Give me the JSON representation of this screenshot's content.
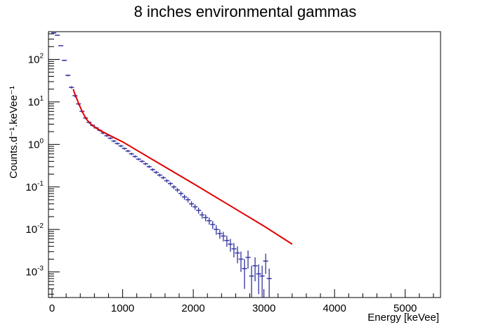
{
  "chart_data": {
    "type": "scatter",
    "title": "8 inches environmental gammas",
    "xlabel": "Energy [keVee]",
    "ylabel": "Counts.d⁻¹.keVee⁻¹",
    "xlim": [
      -50,
      5500
    ],
    "ylim": [
      0.00025,
      450
    ],
    "yscale": "log",
    "grid": false,
    "legend": "none",
    "xticks": [
      0,
      1000,
      2000,
      3000,
      4000,
      5000
    ],
    "xtick_labels": [
      "0",
      "1000",
      "2000",
      "3000",
      "4000",
      "5000"
    ],
    "yticks": [
      0.001,
      0.01,
      0.1,
      1,
      10,
      100
    ],
    "ytick_bases": [
      "10",
      "10",
      "10",
      "10",
      "10",
      "10"
    ],
    "ytick_exponents": [
      "-3",
      "-2",
      "-1",
      "0",
      "1",
      "2"
    ],
    "colors": {
      "data": "#3f3fa8",
      "fit": "#e00000"
    },
    "series": [
      {
        "kind": "histogram-points",
        "x": [
          25,
          75,
          125,
          175,
          225,
          275,
          325,
          375,
          425,
          475,
          525,
          575,
          625,
          675,
          725,
          775,
          825,
          875,
          925,
          975,
          1025,
          1075,
          1125,
          1175,
          1225,
          1275,
          1325,
          1375,
          1425,
          1475,
          1525,
          1575,
          1625,
          1675,
          1725,
          1775,
          1825,
          1875,
          1925,
          1975,
          2025,
          2075,
          2125,
          2175,
          2225,
          2275,
          2325,
          2375,
          2425,
          2475,
          2525,
          2575,
          2625,
          2675,
          2725,
          2775,
          2825,
          2875,
          2925,
          2975,
          3025,
          3075
        ],
        "y": [
          420,
          370,
          210,
          95,
          42,
          22,
          14,
          9,
          6,
          4.2,
          3.3,
          2.8,
          2.45,
          2.15,
          1.85,
          1.6,
          1.4,
          1.2,
          1.05,
          0.92,
          0.8,
          0.7,
          0.6,
          0.52,
          0.45,
          0.4,
          0.35,
          0.3,
          0.255,
          0.22,
          0.19,
          0.165,
          0.14,
          0.12,
          0.1,
          0.085,
          0.07,
          0.058,
          0.05,
          0.04,
          0.034,
          0.028,
          0.022,
          0.019,
          0.016,
          0.013,
          0.01,
          0.008,
          0.007,
          0.0055,
          0.0045,
          0.0035,
          0.0028,
          0.002,
          0.0012,
          0.0022,
          0.0008,
          0.0014,
          0.0009,
          0.0008,
          0.0018,
          0.0007
        ],
        "yerr": [
          6,
          5,
          4,
          3,
          2,
          1.5,
          1.2,
          0.6,
          0.4,
          0.3,
          0.2,
          0.18,
          0.15,
          0.13,
          0.11,
          0.1,
          0.09,
          0.08,
          0.07,
          0.06,
          0.05,
          0.045,
          0.04,
          0.035,
          0.03,
          0.028,
          0.025,
          0.022,
          0.02,
          0.018,
          0.016,
          0.014,
          0.013,
          0.012,
          0.011,
          0.01,
          0.009,
          0.008,
          0.007,
          0.006,
          0.005,
          0.0045,
          0.004,
          0.0035,
          0.003,
          0.0028,
          0.0025,
          0.002,
          0.0018,
          0.0016,
          0.0015,
          0.0013,
          0.0012,
          0.001,
          0.0008,
          0.001,
          0.0006,
          0.0008,
          0.0006,
          0.0006,
          0.0009,
          0.0005
        ]
      },
      {
        "kind": "fit-line",
        "x": [
          300,
          320,
          350,
          380,
          420,
          460,
          500,
          550,
          600,
          700,
          800,
          1000,
          1500,
          2000,
          2500,
          3000,
          3400
        ],
        "y": [
          20,
          16,
          12,
          9,
          6.3,
          4.7,
          3.7,
          3.0,
          2.6,
          2.05,
          1.68,
          1.15,
          0.37,
          0.12,
          0.038,
          0.012,
          0.0045
        ]
      }
    ]
  }
}
